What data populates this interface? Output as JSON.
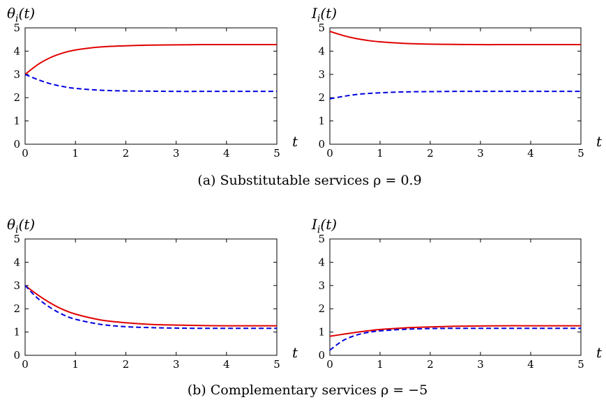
{
  "chart_data": [
    {
      "type": "line",
      "panel": "a-left",
      "ylabel": {
        "sym": "θ",
        "sub": "i",
        "arg": "(t)"
      },
      "xlabel": "t",
      "xlim": [
        0,
        5
      ],
      "ylim": [
        0,
        5
      ],
      "xticks": [
        "0",
        "1",
        "2",
        "3",
        "4",
        "5"
      ],
      "yticks": [
        "0",
        "1",
        "2",
        "3",
        "4",
        "5"
      ],
      "grid": false,
      "series": [
        {
          "style": "solid",
          "color": "#e00000",
          "x": [
            0,
            0.25,
            0.5,
            0.75,
            1,
            1.5,
            2,
            2.5,
            3,
            3.5,
            4,
            4.5,
            5
          ],
          "y": [
            3,
            3.42,
            3.72,
            3.92,
            4.05,
            4.18,
            4.23,
            4.26,
            4.27,
            4.28,
            4.28,
            4.28,
            4.28
          ]
        },
        {
          "style": "dashed",
          "color": "#0000e0",
          "x": [
            0,
            0.25,
            0.5,
            0.75,
            1,
            1.5,
            2,
            2.5,
            3,
            3.5,
            4,
            4.5,
            5
          ],
          "y": [
            3,
            2.78,
            2.6,
            2.48,
            2.4,
            2.32,
            2.29,
            2.28,
            2.27,
            2.27,
            2.27,
            2.27,
            2.27
          ]
        }
      ]
    },
    {
      "type": "line",
      "panel": "a-right",
      "ylabel": {
        "sym": "I",
        "sub": "i",
        "arg": "(t)"
      },
      "xlabel": "t",
      "xlim": [
        0,
        5
      ],
      "ylim": [
        0,
        5
      ],
      "xticks": [
        "0",
        "1",
        "2",
        "3",
        "4",
        "5"
      ],
      "yticks": [
        "0",
        "1",
        "2",
        "3",
        "4",
        "5"
      ],
      "grid": false,
      "series": [
        {
          "style": "solid",
          "color": "#e00000",
          "x": [
            0,
            0.25,
            0.5,
            0.75,
            1,
            1.5,
            2,
            2.5,
            3,
            3.5,
            4,
            4.5,
            5
          ],
          "y": [
            4.85,
            4.68,
            4.55,
            4.46,
            4.4,
            4.33,
            4.3,
            4.29,
            4.28,
            4.28,
            4.28,
            4.28,
            4.28
          ]
        },
        {
          "style": "dashed",
          "color": "#0000e0",
          "x": [
            0,
            0.25,
            0.5,
            0.75,
            1,
            1.5,
            2,
            2.5,
            3,
            3.5,
            4,
            4.5,
            5
          ],
          "y": [
            1.95,
            2.05,
            2.13,
            2.18,
            2.21,
            2.25,
            2.26,
            2.27,
            2.27,
            2.27,
            2.27,
            2.27,
            2.27
          ]
        }
      ]
    },
    {
      "type": "line",
      "panel": "b-left",
      "ylabel": {
        "sym": "θ",
        "sub": "i",
        "arg": "(t)"
      },
      "xlabel": "t",
      "xlim": [
        0,
        5
      ],
      "ylim": [
        0,
        5
      ],
      "xticks": [
        "0",
        "1",
        "2",
        "3",
        "4",
        "5"
      ],
      "yticks": [
        "0",
        "1",
        "2",
        "3",
        "4",
        "5"
      ],
      "grid": false,
      "series": [
        {
          "style": "solid",
          "color": "#e00000",
          "x": [
            0,
            0.25,
            0.5,
            0.75,
            1,
            1.5,
            2,
            2.5,
            3,
            3.5,
            4,
            4.5,
            5
          ],
          "y": [
            3,
            2.6,
            2.25,
            1.97,
            1.77,
            1.52,
            1.4,
            1.33,
            1.3,
            1.28,
            1.27,
            1.27,
            1.27
          ]
        },
        {
          "style": "dashed",
          "color": "#0000e0",
          "x": [
            0,
            0.25,
            0.5,
            0.75,
            1,
            1.5,
            2,
            2.5,
            3,
            3.5,
            4,
            4.5,
            5
          ],
          "y": [
            3,
            2.45,
            2.05,
            1.75,
            1.55,
            1.33,
            1.23,
            1.19,
            1.17,
            1.16,
            1.16,
            1.16,
            1.16
          ]
        }
      ]
    },
    {
      "type": "line",
      "panel": "b-right",
      "ylabel": {
        "sym": "I",
        "sub": "i",
        "arg": "(t)"
      },
      "xlabel": "t",
      "xlim": [
        0,
        5
      ],
      "ylim": [
        0,
        5
      ],
      "xticks": [
        "0",
        "1",
        "2",
        "3",
        "4",
        "5"
      ],
      "yticks": [
        "0",
        "1",
        "2",
        "3",
        "4",
        "5"
      ],
      "grid": false,
      "series": [
        {
          "style": "solid",
          "color": "#e00000",
          "x": [
            0,
            0.25,
            0.5,
            0.75,
            1,
            1.5,
            2,
            2.5,
            3,
            3.5,
            4,
            4.5,
            5
          ],
          "y": [
            0.82,
            0.9,
            0.98,
            1.05,
            1.11,
            1.18,
            1.22,
            1.25,
            1.26,
            1.27,
            1.27,
            1.27,
            1.27
          ]
        },
        {
          "style": "dashed",
          "color": "#0000e0",
          "x": [
            0,
            0.25,
            0.5,
            0.75,
            1,
            1.5,
            2,
            2.5,
            3,
            3.5,
            4,
            4.5,
            5
          ],
          "y": [
            0.22,
            0.62,
            0.85,
            0.98,
            1.05,
            1.12,
            1.15,
            1.16,
            1.16,
            1.16,
            1.16,
            1.16,
            1.16
          ]
        }
      ]
    }
  ],
  "captions": {
    "a": "(a) Substitutable services ρ = 0.9",
    "b": "(b) Complementary services ρ = −5"
  }
}
